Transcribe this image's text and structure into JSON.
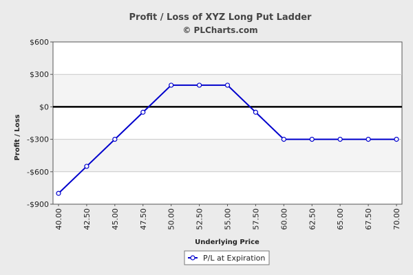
{
  "chart_data": {
    "type": "line",
    "title": "Profit / Loss of XYZ Long Put Ladder",
    "subtitle": "© PLCharts.com",
    "xlabel": "Underlying Price",
    "ylabel": "Profit / Loss",
    "ylim": [
      -900,
      600
    ],
    "yticks": [
      600,
      300,
      0,
      -300,
      -600,
      -900
    ],
    "ytick_labels": [
      "$600",
      "$300",
      "$0",
      "-$300",
      "-$600",
      "-$900"
    ],
    "x": [
      "40.00",
      "42.50",
      "45.00",
      "47.50",
      "50.00",
      "52.50",
      "55.00",
      "57.50",
      "60.00",
      "62.50",
      "65.00",
      "67.50",
      "70.00"
    ],
    "series": [
      {
        "name": "P/L at Expiration",
        "values": [
          -800,
          -550,
          -300,
          -50,
          200,
          200,
          200,
          -50,
          -300,
          -300,
          -300,
          -300,
          -300
        ],
        "color": "#0000cc"
      }
    ],
    "grid": true,
    "legend_position": "bottom-center",
    "zero_line_color": "#000000"
  }
}
